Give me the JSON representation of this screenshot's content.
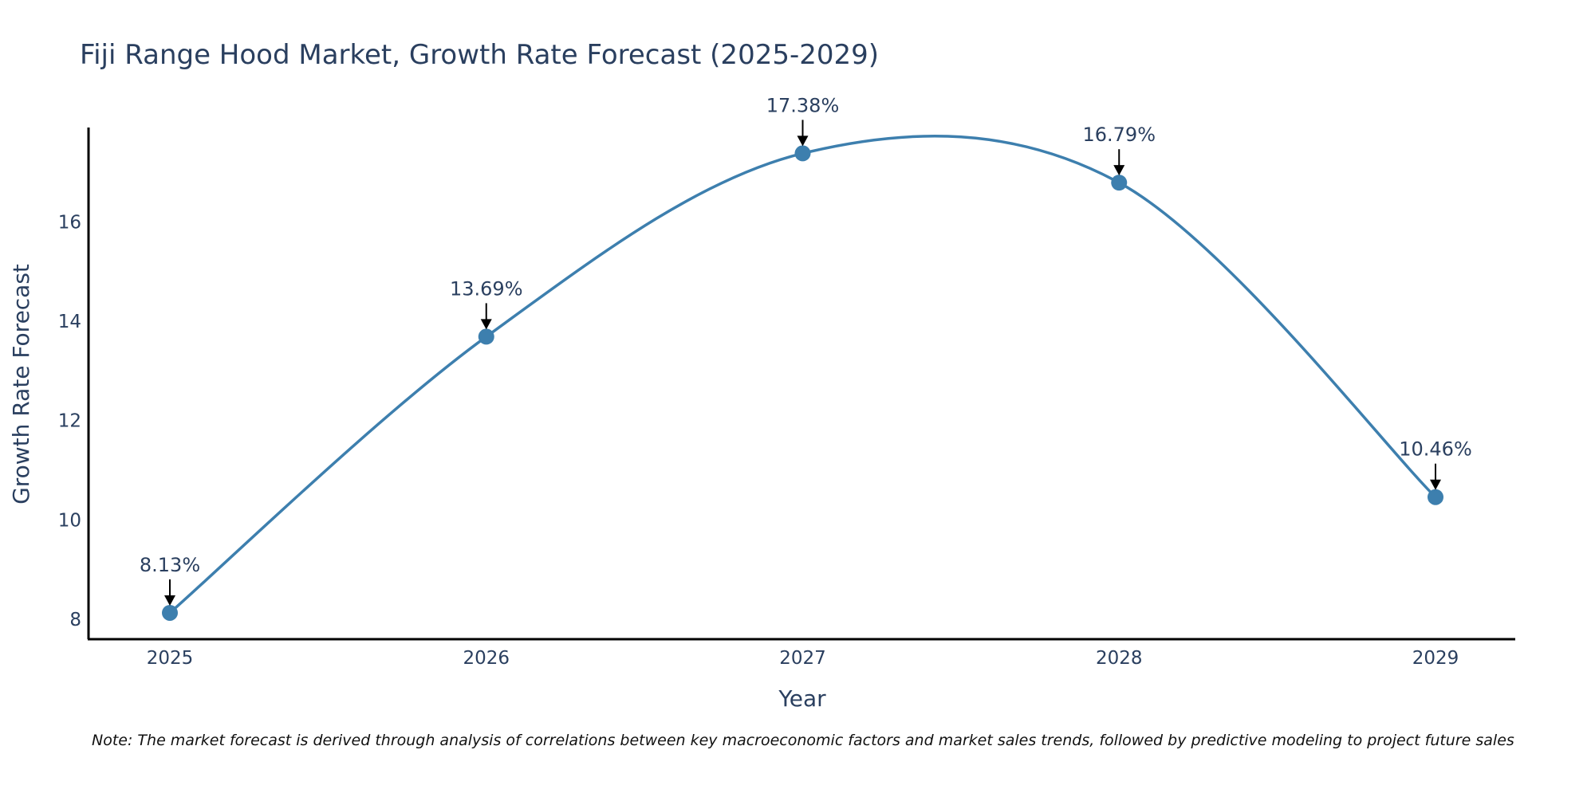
{
  "chart_data": {
    "type": "line",
    "title": "Fiji Range Hood Market, Growth Rate Forecast (2025-2029)",
    "xlabel": "Year",
    "ylabel": "Growth Rate Forecast",
    "categories": [
      "2025",
      "2026",
      "2027",
      "2028",
      "2029"
    ],
    "values": [
      8.13,
      13.69,
      17.38,
      16.79,
      10.46
    ],
    "labels": [
      "8.13%",
      "13.69%",
      "17.38%",
      "16.79%",
      "10.46%"
    ],
    "yticks": [
      8,
      10,
      12,
      14,
      16
    ],
    "ylim": [
      7.6,
      17.9
    ],
    "line_shape": "spline",
    "line_color": "#3d7fae",
    "marker_color": "#3d7fae",
    "grid": false
  },
  "note": "Note: The market forecast is derived through analysis of correlations between key macroeconomic factors and market sales trends, followed by predictive modeling to project future sales"
}
